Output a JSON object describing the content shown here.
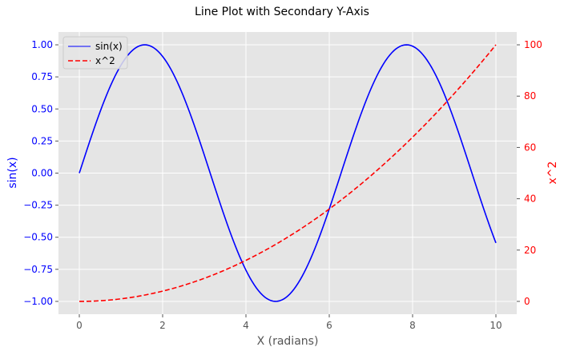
{
  "chart_data": {
    "type": "line",
    "title": "Line Plot with Secondary Y-Axis",
    "xlabel": "X (radians)",
    "ylabel_left": "sin(x)",
    "ylabel_right": "x^2",
    "xlim": [
      -0.5,
      10.5
    ],
    "ylim_left": [
      -1.1,
      1.1
    ],
    "ylim_right": [
      -5,
      105
    ],
    "x_ticks": [
      0,
      2,
      4,
      6,
      8,
      10
    ],
    "x_tick_labels": [
      "0",
      "2",
      "4",
      "6",
      "8",
      "10"
    ],
    "left_ticks": [
      -1.0,
      -0.75,
      -0.5,
      -0.25,
      0.0,
      0.25,
      0.5,
      0.75,
      1.0
    ],
    "left_tick_labels": [
      "−1.00",
      "−0.75",
      "−0.50",
      "−0.25",
      "0.00",
      "0.25",
      "0.50",
      "0.75",
      "1.00"
    ],
    "right_ticks": [
      0,
      20,
      40,
      60,
      80,
      100
    ],
    "right_tick_labels": [
      "0",
      "20",
      "40",
      "60",
      "80",
      "100"
    ],
    "grid": true,
    "legend_position": "top-left",
    "background_color": "#e5e5e5",
    "series": [
      {
        "name": "sin(x)",
        "axis": "left",
        "color": "#0000ff",
        "style": "solid",
        "x": [
          0,
          0.5,
          1,
          1.5,
          2,
          2.5,
          3,
          3.5,
          4,
          4.5,
          5,
          5.5,
          6,
          6.5,
          7,
          7.5,
          8,
          8.5,
          9,
          9.5,
          10
        ],
        "y": [
          0.0,
          0.479,
          0.841,
          0.997,
          0.909,
          0.598,
          0.141,
          -0.351,
          -0.757,
          -0.978,
          -0.959,
          -0.706,
          -0.279,
          0.215,
          0.657,
          0.938,
          0.989,
          0.798,
          0.412,
          -0.075,
          -0.544
        ]
      },
      {
        "name": "x^2",
        "axis": "right",
        "color": "#ff0000",
        "style": "dashed",
        "x": [
          0,
          0.5,
          1,
          1.5,
          2,
          2.5,
          3,
          3.5,
          4,
          4.5,
          5,
          5.5,
          6,
          6.5,
          7,
          7.5,
          8,
          8.5,
          9,
          9.5,
          10
        ],
        "y": [
          0,
          0.25,
          1,
          2.25,
          4,
          6.25,
          9,
          12.25,
          16,
          20.25,
          25,
          30.25,
          36,
          42.25,
          49,
          56.25,
          64,
          72.25,
          81,
          90.25,
          100
        ]
      }
    ]
  }
}
